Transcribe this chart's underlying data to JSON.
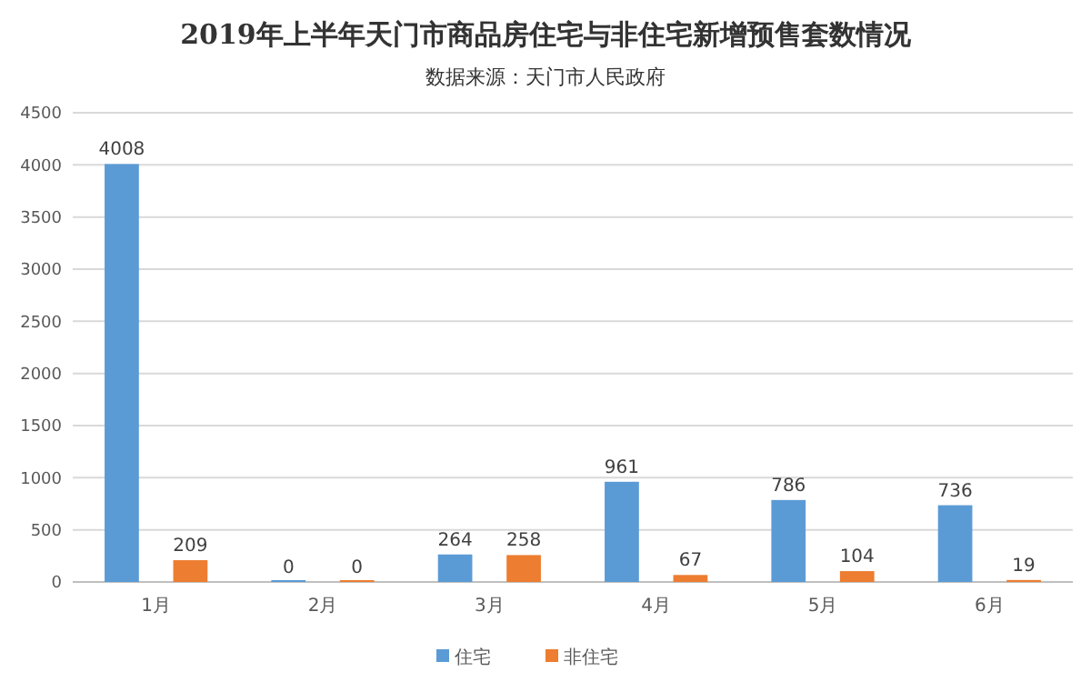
{
  "chart_data": {
    "type": "bar",
    "title": "2019年上半年天门市商品房住宅与非住宅新增预售套数情况",
    "subtitle": "数据来源：天门市人民政府",
    "categories": [
      "1月",
      "2月",
      "3月",
      "4月",
      "5月",
      "6月"
    ],
    "series": [
      {
        "name": "住宅",
        "color": "#5b9bd5",
        "values": [
          4008,
          0,
          264,
          961,
          786,
          736
        ]
      },
      {
        "name": "非住宅",
        "color": "#ed7d31",
        "values": [
          209,
          0,
          258,
          67,
          104,
          19
        ]
      }
    ],
    "ylim": [
      0,
      4500
    ],
    "yticks": [
      0,
      500,
      1000,
      1500,
      2000,
      2500,
      3000,
      3500,
      4000,
      4500
    ],
    "grid": "y",
    "legend": "bottom",
    "data_labels": true
  }
}
